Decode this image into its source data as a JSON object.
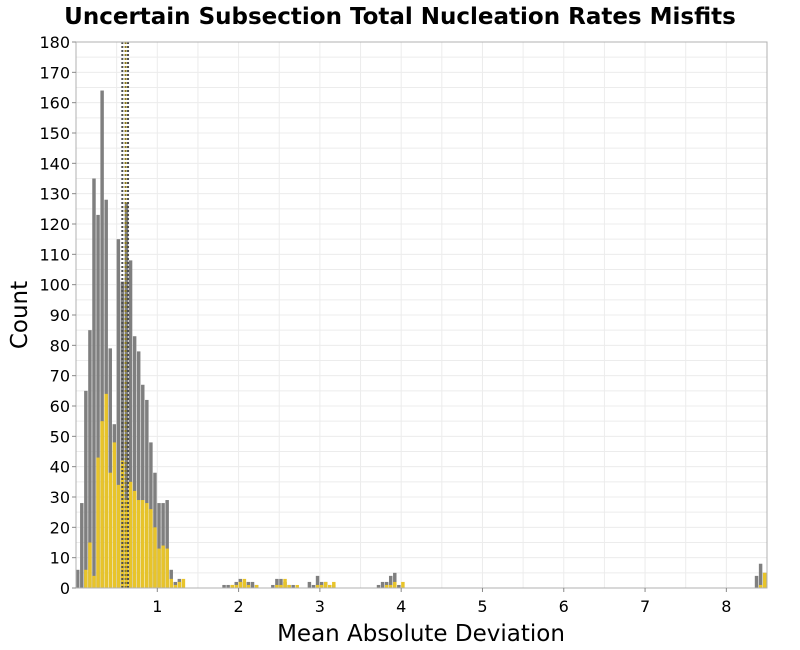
{
  "chart_data": {
    "type": "bar",
    "title": "Uncertain Subsection Total Nucleation Rates Misfits",
    "xlabel": "Mean Absolute Deviation",
    "ylabel": "Count",
    "xlim": [
      0.0,
      8.5
    ],
    "ylim": [
      0,
      180
    ],
    "xticks": [
      "1",
      "2",
      "3",
      "4",
      "5",
      "6",
      "7",
      "8"
    ],
    "yticks": [
      "0",
      "10",
      "20",
      "30",
      "40",
      "50",
      "60",
      "70",
      "80",
      "90",
      "100",
      "110",
      "120",
      "130",
      "140",
      "150",
      "160",
      "170",
      "180"
    ],
    "grid": true,
    "bin_start": 0.0,
    "bin_width": 0.05,
    "colors": {
      "gray": "#7f7f7f",
      "yellow": "#e8c42a",
      "vline": "#4d4d4d",
      "vline_alt": "#8c7a1a"
    },
    "series": [
      {
        "color": "gray",
        "values": [
          6,
          28,
          65,
          85,
          135,
          123,
          164,
          128,
          79,
          54,
          115,
          101,
          127,
          108,
          83,
          78,
          67,
          62,
          48,
          38,
          28,
          28,
          29,
          6,
          2,
          3,
          0,
          0,
          0,
          0,
          0,
          0,
          0,
          0,
          0,
          0,
          1,
          1,
          1,
          2,
          3,
          2,
          2,
          2,
          1,
          0,
          0,
          0,
          1,
          3,
          3,
          2,
          1,
          1,
          0,
          0,
          0,
          2,
          1,
          4,
          2,
          2,
          1,
          1,
          0,
          0,
          0,
          0,
          0,
          0,
          0,
          0,
          0,
          0,
          1,
          2,
          2,
          4,
          5,
          1,
          0,
          0,
          0,
          0,
          0,
          0,
          0,
          0,
          0,
          0,
          0,
          0,
          0,
          0,
          0,
          0,
          0,
          0,
          0,
          0,
          0,
          0,
          0,
          0,
          0,
          0,
          0,
          0,
          0,
          0,
          0,
          0,
          0,
          0,
          0,
          0,
          0,
          0,
          0,
          0,
          0,
          0,
          0,
          0,
          0,
          0,
          0,
          0,
          0,
          0,
          0,
          0,
          0,
          0,
          0,
          0,
          0,
          0,
          0,
          0,
          0,
          0,
          0,
          0,
          0,
          0,
          0,
          0,
          0,
          0,
          0,
          0,
          0,
          0,
          0,
          0,
          0,
          0,
          0,
          0,
          0,
          0,
          0,
          0,
          0,
          0,
          0,
          4,
          8,
          5
        ]
      },
      {
        "color": "yellow",
        "values": [
          0,
          0,
          6,
          15,
          4,
          43,
          55,
          64,
          38,
          48,
          34,
          42,
          29,
          35,
          32,
          29,
          29,
          28,
          26,
          20,
          13,
          14,
          13,
          3,
          1,
          2,
          3,
          0,
          0,
          0,
          0,
          0,
          0,
          0,
          0,
          0,
          0,
          0,
          1,
          1,
          2,
          3,
          1,
          0,
          1,
          0,
          0,
          0,
          0,
          1,
          1,
          3,
          1,
          0,
          1,
          0,
          0,
          0,
          0,
          1,
          1,
          2,
          1,
          2,
          0,
          0,
          0,
          0,
          0,
          0,
          0,
          0,
          0,
          0,
          0,
          0,
          1,
          1,
          2,
          0,
          2,
          0,
          0,
          0,
          0,
          0,
          0,
          0,
          0,
          0,
          0,
          0,
          0,
          0,
          0,
          0,
          0,
          0,
          0,
          0,
          0,
          0,
          0,
          0,
          0,
          0,
          0,
          0,
          0,
          0,
          0,
          0,
          0,
          0,
          0,
          0,
          0,
          0,
          0,
          0,
          0,
          0,
          0,
          0,
          0,
          0,
          0,
          0,
          0,
          0,
          0,
          0,
          0,
          0,
          0,
          0,
          0,
          0,
          0,
          0,
          0,
          0,
          0,
          0,
          0,
          0,
          0,
          0,
          0,
          0,
          0,
          0,
          0,
          0,
          0,
          0,
          0,
          0,
          0,
          0,
          0,
          0,
          0,
          0,
          0,
          0,
          0,
          0,
          1,
          5
        ]
      }
    ],
    "vlines": [
      {
        "x": 0.57,
        "style": "dotted",
        "color": "vline"
      },
      {
        "x": 0.61,
        "style": "dotted",
        "color": "vline_alt"
      },
      {
        "x": 0.64,
        "style": "dotted",
        "color": "vline"
      }
    ]
  }
}
